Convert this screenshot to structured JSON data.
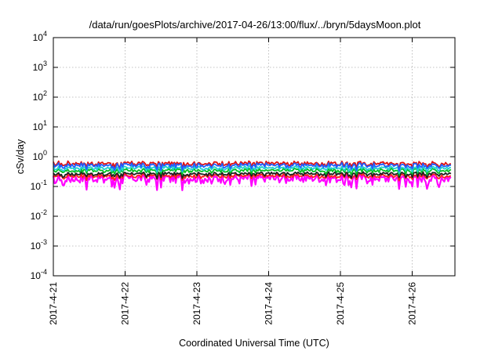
{
  "chart_data": {
    "type": "line",
    "title": "/data/run/goesPlots/archive/2017-04-26/13:00/flux/../bryn/5daysMoon.plot",
    "xlabel": "Coordinated Universal Time (UTC)",
    "ylabel": "cSv/day",
    "yscale": "log",
    "ylim": [
      0.0001,
      10000
    ],
    "xlim": [
      "2017-04-21",
      "2017-04-26 13:00"
    ],
    "x_ticks": [
      "2017-4-21",
      "2017-4-22",
      "2017-4-23",
      "2017-4-24",
      "2017-4-25",
      "2017-4-26"
    ],
    "y_ticks": [
      {
        "base": "10",
        "exp": "-4"
      },
      {
        "base": "10",
        "exp": "-3"
      },
      {
        "base": "10",
        "exp": "-2"
      },
      {
        "base": "10",
        "exp": "-1"
      },
      {
        "base": "10",
        "exp": "0"
      },
      {
        "base": "10",
        "exp": "1"
      },
      {
        "base": "10",
        "exp": "2"
      },
      {
        "base": "10",
        "exp": "3"
      },
      {
        "base": "10",
        "exp": "4"
      }
    ],
    "grid": true,
    "series": [
      {
        "color": "#ff00ff",
        "level": 0.19,
        "amp": 0.06,
        "dips": true
      },
      {
        "color": "#ff2020",
        "level": 0.23,
        "amp": 0.03,
        "dips": false
      },
      {
        "color": "#202020",
        "level": 0.27,
        "amp": 0.03,
        "dips": false
      },
      {
        "color": "#00c020",
        "level": 0.35,
        "amp": 0.04,
        "dips": false
      },
      {
        "color": "#20d0d0",
        "level": 0.42,
        "amp": 0.05,
        "dips": false
      },
      {
        "color": "#e01010",
        "level": 0.6,
        "amp": 0.08,
        "dips": false
      },
      {
        "color": "#2060ff",
        "level": 0.52,
        "amp": 0.08,
        "dips": false
      }
    ]
  }
}
